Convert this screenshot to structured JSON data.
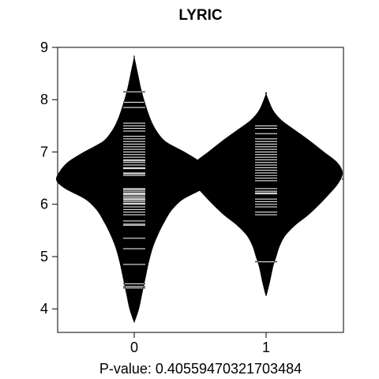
{
  "chart_data": {
    "type": "beanplot",
    "title": "LYRIC",
    "xlabel": "P-value: 0.40559470321703484",
    "ylabel": "",
    "ylim": [
      3.55,
      9.0
    ],
    "yticks": [
      4,
      5,
      6,
      7,
      8,
      9
    ],
    "categories": [
      "0",
      "1"
    ],
    "overall_mean_line": 6.48,
    "groups": [
      {
        "name": "0",
        "mean": 6.44,
        "density": [
          [
            3.75,
            0.0
          ],
          [
            4.0,
            0.04
          ],
          [
            4.3,
            0.07
          ],
          [
            4.6,
            0.1
          ],
          [
            4.9,
            0.13
          ],
          [
            5.2,
            0.17
          ],
          [
            5.5,
            0.23
          ],
          [
            5.7,
            0.28
          ],
          [
            5.9,
            0.34
          ],
          [
            6.1,
            0.44
          ],
          [
            6.3,
            0.62
          ],
          [
            6.45,
            0.7
          ],
          [
            6.6,
            0.68
          ],
          [
            6.8,
            0.6
          ],
          [
            7.0,
            0.45
          ],
          [
            7.2,
            0.28
          ],
          [
            7.4,
            0.2
          ],
          [
            7.6,
            0.15
          ],
          [
            7.9,
            0.1
          ],
          [
            8.2,
            0.06
          ],
          [
            8.5,
            0.03
          ],
          [
            8.8,
            0.0
          ]
        ],
        "observations": [
          4.4,
          4.43,
          4.48,
          4.85,
          5.15,
          5.35,
          5.6,
          5.62,
          5.68,
          5.8,
          5.85,
          5.9,
          5.95,
          6.0,
          6.02,
          6.05,
          6.08,
          6.1,
          6.12,
          6.15,
          6.18,
          6.2,
          6.22,
          6.25,
          6.28,
          6.3,
          6.55,
          6.58,
          6.6,
          6.68,
          6.7,
          6.75,
          6.8,
          6.83,
          6.85,
          6.9,
          6.95,
          7.0,
          7.05,
          7.1,
          7.15,
          7.2,
          7.25,
          7.3,
          7.4,
          7.45,
          7.5,
          7.55,
          7.85,
          7.95,
          8.15
        ]
      },
      {
        "name": "1",
        "mean": 6.57,
        "density": [
          [
            4.25,
            0.0
          ],
          [
            4.5,
            0.03
          ],
          [
            4.8,
            0.06
          ],
          [
            5.0,
            0.09
          ],
          [
            5.2,
            0.12
          ],
          [
            5.4,
            0.17
          ],
          [
            5.6,
            0.26
          ],
          [
            5.8,
            0.38
          ],
          [
            6.0,
            0.48
          ],
          [
            6.2,
            0.57
          ],
          [
            6.4,
            0.65
          ],
          [
            6.6,
            0.69
          ],
          [
            6.8,
            0.64
          ],
          [
            7.0,
            0.52
          ],
          [
            7.2,
            0.4
          ],
          [
            7.4,
            0.27
          ],
          [
            7.6,
            0.14
          ],
          [
            7.8,
            0.06
          ],
          [
            8.1,
            0.0
          ]
        ],
        "observations": [
          4.9,
          5.8,
          5.85,
          5.95,
          6.0,
          6.05,
          6.1,
          6.2,
          6.22,
          6.25,
          6.3,
          6.45,
          6.5,
          6.55,
          6.6,
          6.65,
          6.7,
          6.75,
          6.8,
          6.85,
          6.9,
          6.95,
          7.0,
          7.05,
          7.1,
          7.15,
          7.2,
          7.25,
          7.35,
          7.45,
          7.5
        ]
      }
    ]
  }
}
